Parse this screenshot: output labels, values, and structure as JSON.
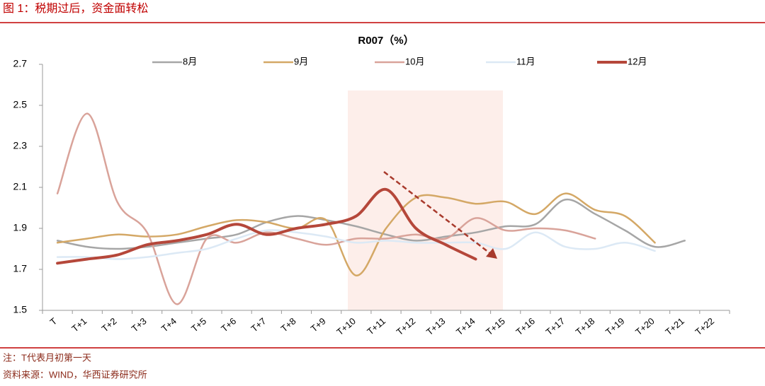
{
  "header": {
    "title": "图 1：税期过后，资金面转松"
  },
  "chart_data": {
    "type": "line",
    "title": "R007（%）",
    "categories": [
      "T",
      "T+1",
      "T+2",
      "T+3",
      "T+4",
      "T+5",
      "T+6",
      "T+7",
      "T+8",
      "T+9",
      "T+10",
      "T+11",
      "T+12",
      "T+13",
      "T+14",
      "T+15",
      "T+16",
      "T+17",
      "T+18",
      "T+19",
      "T+20",
      "T+21",
      "T+22"
    ],
    "series": [
      {
        "name": "8月",
        "color": "#a6a6a6",
        "values": [
          1.84,
          1.81,
          1.8,
          1.81,
          1.83,
          1.85,
          1.87,
          1.93,
          1.96,
          1.94,
          1.91,
          1.87,
          1.84,
          1.86,
          1.88,
          1.91,
          1.92,
          2.04,
          1.97,
          1.89,
          1.81,
          1.84,
          null
        ]
      },
      {
        "name": "9月",
        "color": "#d4a866",
        "values": [
          1.83,
          1.85,
          1.87,
          1.86,
          1.87,
          1.91,
          1.94,
          1.93,
          1.9,
          1.94,
          1.67,
          1.9,
          2.05,
          2.05,
          2.02,
          2.03,
          1.97,
          2.07,
          1.99,
          1.96,
          1.83,
          null,
          null
        ]
      },
      {
        "name": "10月",
        "color": "#d9a39a",
        "values": [
          2.07,
          2.46,
          2.03,
          1.88,
          1.53,
          1.85,
          1.83,
          1.88,
          1.85,
          1.82,
          1.85,
          1.85,
          1.87,
          1.85,
          1.95,
          1.89,
          1.9,
          1.89,
          1.85,
          null,
          null,
          null,
          null
        ]
      },
      {
        "name": "11月",
        "color": "#dce9f5",
        "values": [
          1.76,
          1.76,
          1.75,
          1.76,
          1.78,
          1.8,
          1.85,
          1.89,
          1.88,
          1.86,
          1.83,
          1.84,
          1.83,
          1.83,
          1.83,
          1.8,
          1.88,
          1.81,
          1.8,
          1.83,
          1.79,
          null,
          null
        ]
      },
      {
        "name": "12月",
        "color": "#b5473a",
        "values": [
          1.73,
          1.75,
          1.77,
          1.82,
          1.84,
          1.87,
          1.92,
          1.87,
          1.9,
          1.92,
          1.96,
          2.09,
          1.9,
          1.82,
          1.75,
          null,
          null,
          null,
          null,
          null,
          null,
          null,
          null
        ]
      }
    ],
    "ylim": [
      1.5,
      2.7
    ],
    "yticks": [
      1.5,
      1.7,
      1.9,
      2.1,
      2.3,
      2.5,
      2.7
    ],
    "legend": "top"
  },
  "footer": {
    "note": "注：T代表月初第一天",
    "source": "资料来源：WIND，华西证券研究所"
  }
}
